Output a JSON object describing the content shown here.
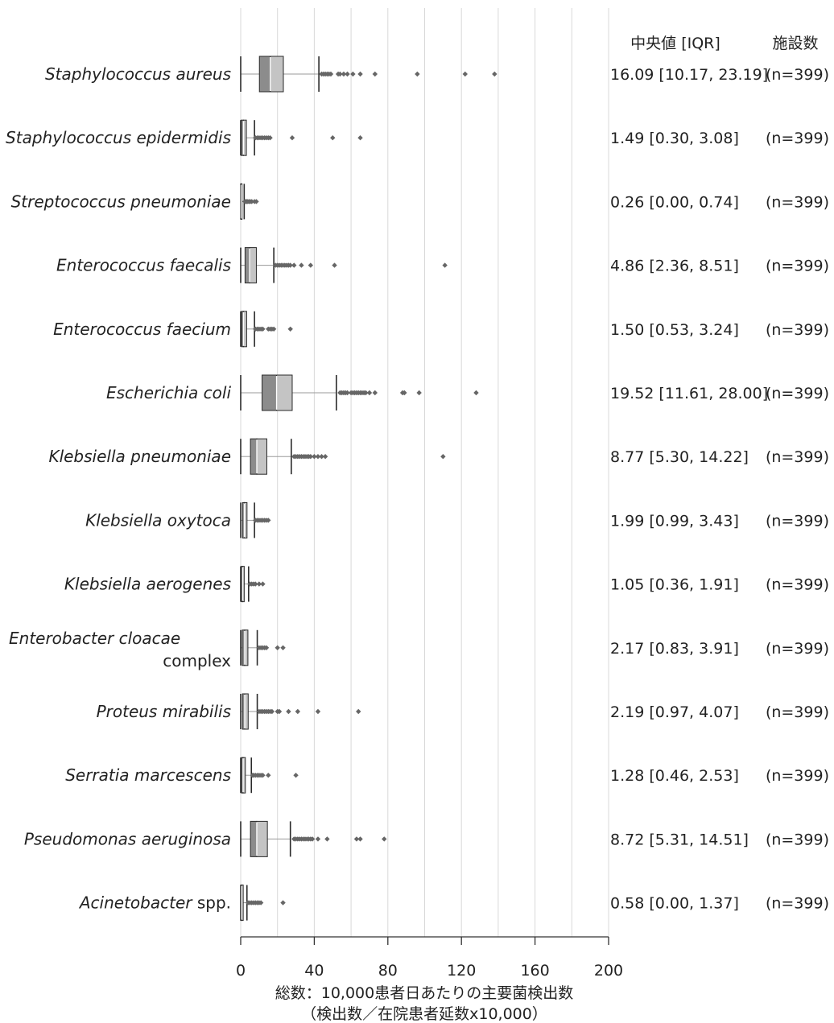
{
  "chart_data": {
    "type": "boxplot",
    "xlabel": "総数：10,000患者日あたりの主要菌検出数",
    "xlabel2": "（検出数／在院患者延数x10,000）",
    "xlim": [
      0,
      200
    ],
    "xticks": [
      0,
      40,
      80,
      120,
      160,
      200
    ],
    "grid": true,
    "header_median": "中央値 [IQR]",
    "header_n": "施設数",
    "series": [
      {
        "label": "Staphylococcus aureus",
        "label_line2": "",
        "min": 0,
        "q1": 10.17,
        "median": 16.09,
        "q3": 23.19,
        "whisker_high": 42.5,
        "outliers": [
          44,
          45,
          46,
          47,
          48,
          49,
          53,
          54,
          56,
          58,
          61,
          65,
          73,
          96,
          122,
          138
        ],
        "stat": "16.09 [10.17, 23.19]",
        "n": "(n=399)"
      },
      {
        "label": "Staphylococcus epidermidis",
        "label_line2": "",
        "min": 0,
        "q1": 0.3,
        "median": 1.49,
        "q3": 3.08,
        "whisker_high": 7.5,
        "outliers": [
          8,
          9,
          10,
          11,
          12,
          13,
          14,
          15,
          16,
          28,
          50,
          65
        ],
        "stat": "1.49 [0.30, 3.08]",
        "n": "(n=399)"
      },
      {
        "label": "Streptococcus pneumoniae",
        "label_line2": "",
        "min": 0,
        "q1": 0.0,
        "median": 0.26,
        "q3": 0.74,
        "whisker_high": 1.9,
        "outliers": [
          2.3,
          2.8,
          3.3,
          3.8,
          4.5,
          5.2,
          6,
          7.5,
          8.5
        ],
        "stat": "0.26 [0.00, 0.74]",
        "n": "(n=399)"
      },
      {
        "label": "Enterococcus faecalis",
        "label_line2": "",
        "min": 0,
        "q1": 2.36,
        "median": 4.86,
        "q3": 8.51,
        "whisker_high": 18,
        "outliers": [
          19,
          20,
          21,
          22,
          23,
          24,
          25,
          26,
          27,
          29,
          33,
          38,
          51,
          111
        ],
        "stat": "4.86 [2.36, 8.51]",
        "n": "(n=399)"
      },
      {
        "label": "Enterococcus faecium",
        "label_line2": "",
        "min": 0,
        "q1": 0.53,
        "median": 1.5,
        "q3": 3.24,
        "whisker_high": 7.5,
        "outliers": [
          8,
          9,
          10,
          11,
          12,
          15,
          16,
          17,
          18,
          27
        ],
        "stat": "1.50 [0.53, 3.24]",
        "n": "(n=399)"
      },
      {
        "label": "Escherichia coli",
        "label_line2": "",
        "min": 0,
        "q1": 11.61,
        "median": 19.52,
        "q3": 28.0,
        "whisker_high": 52,
        "outliers": [
          54,
          55,
          56,
          57,
          58,
          60,
          61,
          62,
          63,
          64,
          65,
          66,
          67,
          68,
          70,
          73,
          88,
          89,
          97,
          128
        ],
        "stat": "19.52 [11.61, 28.00]",
        "n": "(n=399)"
      },
      {
        "label": "Klebsiella pneumoniae",
        "label_line2": "",
        "min": 0,
        "q1": 5.3,
        "median": 8.77,
        "q3": 14.22,
        "whisker_high": 27.5,
        "outliers": [
          29,
          30,
          31,
          32,
          33,
          34,
          35,
          36,
          37,
          38,
          40,
          42,
          44,
          46,
          110
        ],
        "stat": "8.77 [5.30, 14.22]",
        "n": "(n=399)"
      },
      {
        "label": "Klebsiella oxytoca",
        "label_line2": "",
        "min": 0,
        "q1": 0.99,
        "median": 1.99,
        "q3": 3.43,
        "whisker_high": 7.5,
        "outliers": [
          8,
          9,
          10,
          11,
          12,
          13,
          14,
          15
        ],
        "stat": "1.99 [0.99, 3.43]",
        "n": "(n=399)"
      },
      {
        "label": "Klebsiella aerogenes",
        "label_line2": "",
        "min": 0,
        "q1": 0.36,
        "median": 1.05,
        "q3": 1.91,
        "whisker_high": 4.3,
        "outliers": [
          5,
          6,
          7,
          8,
          10,
          12
        ],
        "stat": "1.05 [0.36, 1.91]",
        "n": "(n=399)"
      },
      {
        "label": "Enterobacter cloacae",
        "label_line2": "complex",
        "min": 0,
        "q1": 0.83,
        "median": 2.17,
        "q3": 3.91,
        "whisker_high": 9,
        "outliers": [
          10,
          11,
          12,
          13,
          14,
          20,
          23
        ],
        "stat": "2.17 [0.83, 3.91]",
        "n": "(n=399)"
      },
      {
        "label": "Proteus mirabilis",
        "label_line2": "",
        "min": 0,
        "q1": 0.97,
        "median": 2.19,
        "q3": 4.07,
        "whisker_high": 9,
        "outliers": [
          10,
          11,
          12,
          13,
          14,
          15,
          16,
          17,
          20,
          21,
          26,
          31,
          42,
          64
        ],
        "stat": "2.19 [0.97, 4.07]",
        "n": "(n=399)"
      },
      {
        "label": "Serratia marcescens",
        "label_line2": "",
        "min": 0,
        "q1": 0.46,
        "median": 1.28,
        "q3": 2.53,
        "whisker_high": 5.8,
        "outliers": [
          6.5,
          7,
          8,
          9,
          10,
          11,
          12,
          15,
          30
        ],
        "stat": "1.28 [0.46, 2.53]",
        "n": "(n=399)"
      },
      {
        "label": "Pseudomonas aeruginosa",
        "label_line2": "",
        "min": 0,
        "q1": 5.31,
        "median": 8.72,
        "q3": 14.51,
        "whisker_high": 27,
        "outliers": [
          29,
          30,
          31,
          32,
          33,
          34,
          35,
          36,
          37,
          38,
          39,
          42,
          47,
          63,
          65,
          78
        ],
        "stat": "8.72 [5.31, 14.51]",
        "n": "(n=399)"
      },
      {
        "label": "Acinetobacter",
        "label_suffix": " spp.",
        "label_line2": "",
        "min": 0,
        "q1": 0.0,
        "median": 0.58,
        "q3": 1.37,
        "whisker_high": 3.4,
        "outliers": [
          4,
          5,
          6,
          7,
          8,
          9,
          10,
          11,
          23
        ],
        "stat": "0.58 [0.00, 1.37]",
        "n": "(n=399)"
      }
    ]
  },
  "colors": {
    "box_lower": "#8c8c8c",
    "box_upper": "#c4c4c4",
    "median_line": "#ffffff",
    "outline": "#2a2a2a",
    "whisker": "#9a9a9a",
    "outlier": "#666666",
    "grid": "#d8d8d8",
    "axis": "#333333"
  }
}
